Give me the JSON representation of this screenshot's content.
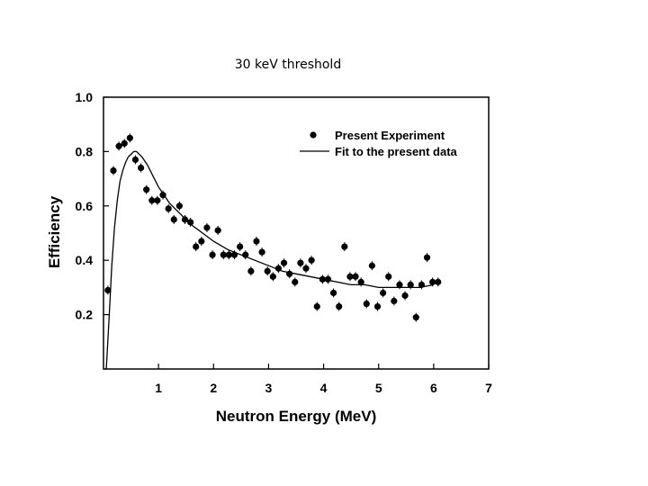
{
  "slide": {
    "title": "30 keV threshold"
  },
  "chart_data": {
    "type": "scatter",
    "title": "30 keV threshold",
    "xlabel": "Neutron Energy (MeV)",
    "ylabel": "Efficiency",
    "xlim": [
      0,
      7
    ],
    "ylim": [
      0,
      1.0
    ],
    "xticks": [
      1,
      2,
      3,
      4,
      5,
      6,
      7
    ],
    "yticks": [
      0.2,
      0.4,
      0.6,
      0.8,
      1.0
    ],
    "ytick_labels": [
      "0.2",
      "0.4",
      "0.6",
      "0.8",
      "1.0"
    ],
    "grid": false,
    "legend_position": "top-right",
    "series": [
      {
        "name": "Present Experiment",
        "kind": "points",
        "color": "#000000",
        "x": [
          0.08,
          0.18,
          0.28,
          0.38,
          0.48,
          0.58,
          0.68,
          0.78,
          0.88,
          0.98,
          1.08,
          1.18,
          1.28,
          1.38,
          1.48,
          1.58,
          1.68,
          1.78,
          1.88,
          1.98,
          2.08,
          2.18,
          2.28,
          2.38,
          2.48,
          2.58,
          2.68,
          2.78,
          2.88,
          2.98,
          3.08,
          3.18,
          3.28,
          3.38,
          3.48,
          3.58,
          3.68,
          3.78,
          3.88,
          3.98,
          4.08,
          4.18,
          4.28,
          4.38,
          4.48,
          4.58,
          4.68,
          4.78,
          4.88,
          4.98,
          5.08,
          5.18,
          5.28,
          5.38,
          5.48,
          5.58,
          5.68,
          5.78,
          5.88,
          5.98,
          6.08
        ],
        "y": [
          0.29,
          0.73,
          0.82,
          0.83,
          0.85,
          0.77,
          0.74,
          0.66,
          0.62,
          0.62,
          0.64,
          0.59,
          0.55,
          0.6,
          0.55,
          0.54,
          0.45,
          0.47,
          0.52,
          0.42,
          0.51,
          0.42,
          0.42,
          0.42,
          0.45,
          0.42,
          0.36,
          0.47,
          0.43,
          0.36,
          0.34,
          0.37,
          0.39,
          0.35,
          0.32,
          0.39,
          0.37,
          0.4,
          0.23,
          0.33,
          0.33,
          0.28,
          0.23,
          0.45,
          0.34,
          0.34,
          0.32,
          0.24,
          0.38,
          0.23,
          0.28,
          0.34,
          0.25,
          0.31,
          0.27,
          0.31,
          0.19,
          0.31,
          0.41,
          0.32,
          0.32
        ]
      },
      {
        "name": "Fit to the present data",
        "kind": "line",
        "color": "#000000",
        "x": [
          0.0,
          0.05,
          0.1,
          0.15,
          0.2,
          0.25,
          0.3,
          0.35,
          0.4,
          0.45,
          0.5,
          0.55,
          0.6,
          0.65,
          0.7,
          0.8,
          0.9,
          1.0,
          1.2,
          1.4,
          1.6,
          1.8,
          2.0,
          2.25,
          2.5,
          2.75,
          3.0,
          3.25,
          3.5,
          3.75,
          4.0,
          4.25,
          4.5,
          4.75,
          5.0,
          5.25,
          5.5,
          5.75,
          6.0
        ],
        "y": [
          0.0,
          0.0,
          0.18,
          0.38,
          0.52,
          0.62,
          0.69,
          0.73,
          0.76,
          0.78,
          0.79,
          0.8,
          0.8,
          0.79,
          0.78,
          0.75,
          0.71,
          0.67,
          0.61,
          0.57,
          0.53,
          0.5,
          0.47,
          0.44,
          0.42,
          0.4,
          0.38,
          0.36,
          0.35,
          0.34,
          0.33,
          0.32,
          0.31,
          0.31,
          0.3,
          0.3,
          0.3,
          0.3,
          0.31
        ]
      }
    ]
  }
}
